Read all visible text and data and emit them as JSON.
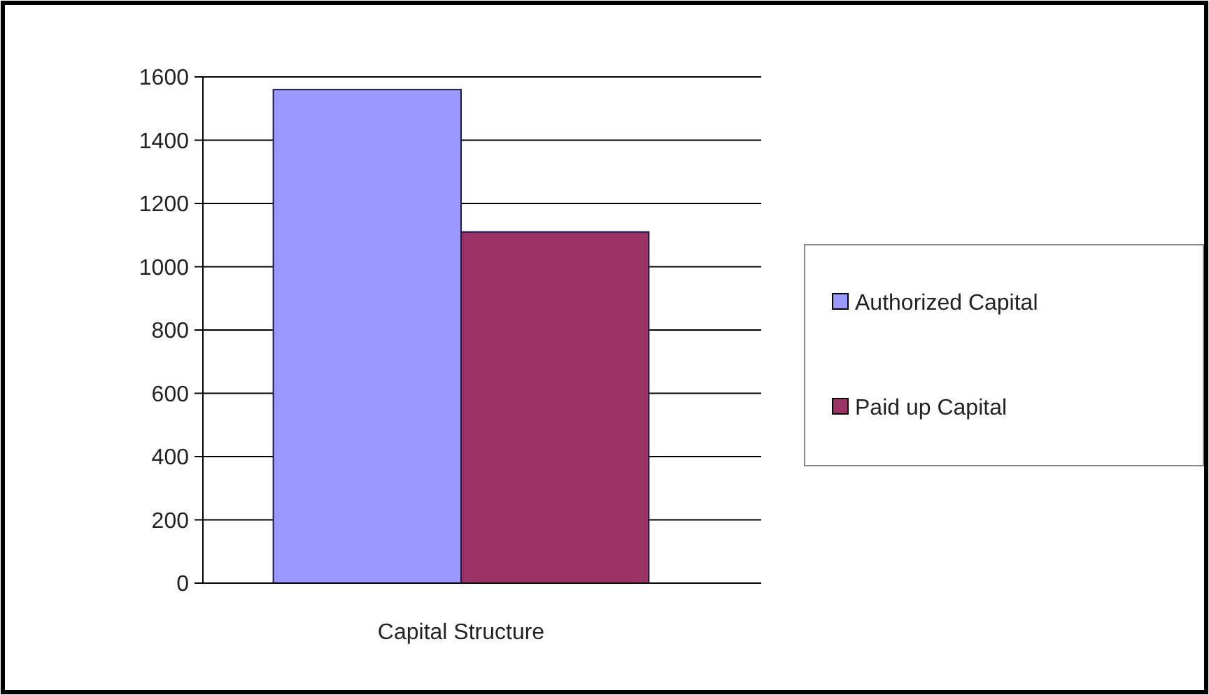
{
  "chart_data": {
    "type": "bar",
    "categories": [
      "Capital Structure"
    ],
    "series": [
      {
        "name": "Authorized Capital",
        "color": "#9999ff",
        "values": [
          1560
        ]
      },
      {
        "name": "Paid up Capital",
        "color": "#993366",
        "values": [
          1110
        ]
      }
    ],
    "ylim": [
      0,
      1600
    ],
    "yticks": [
      0,
      200,
      400,
      600,
      800,
      1000,
      1200,
      1400,
      1600
    ],
    "grid": "y",
    "legend": "right"
  }
}
